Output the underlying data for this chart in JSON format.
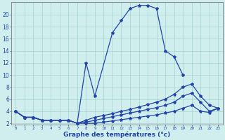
{
  "xlabel": "Graphe des températures (°c)",
  "bg_color": "#d1eeee",
  "grid_color": "#a8d4d4",
  "line_color": "#2244aa",
  "curve1_x": [
    0,
    1,
    2,
    3,
    4,
    5,
    6,
    7,
    8,
    9,
    11,
    12,
    13,
    14,
    15,
    16,
    17,
    18,
    19
  ],
  "curve1_y": [
    4,
    3,
    3,
    2.5,
    2.5,
    2.5,
    2.5,
    2,
    12,
    6.5,
    17,
    19,
    21,
    21.5,
    21.5,
    21,
    14,
    13,
    10
  ],
  "curve2_x": [
    0,
    1,
    2,
    3,
    4,
    5,
    6,
    7,
    8,
    9,
    10,
    11,
    12,
    13,
    14,
    15,
    16,
    17,
    18,
    19,
    20,
    21,
    22,
    23
  ],
  "curve2_y": [
    4,
    3,
    3,
    2.5,
    2.5,
    2.5,
    2.5,
    2,
    2.5,
    3,
    3.3,
    3.6,
    4,
    4.3,
    4.7,
    5.1,
    5.5,
    6,
    6.8,
    8,
    8.5,
    6.5,
    5,
    4.5
  ],
  "curve3_x": [
    0,
    1,
    2,
    3,
    4,
    5,
    6,
    7,
    8,
    9,
    10,
    11,
    12,
    13,
    14,
    15,
    16,
    17,
    18,
    19,
    20,
    21,
    22,
    23
  ],
  "curve3_y": [
    4,
    3,
    3,
    2.5,
    2.5,
    2.5,
    2.5,
    2,
    2.2,
    2.5,
    2.8,
    3.1,
    3.4,
    3.7,
    4.0,
    4.3,
    4.6,
    5,
    5.5,
    6.5,
    7,
    5.5,
    4,
    4.5
  ],
  "curve4_x": [
    0,
    1,
    2,
    3,
    4,
    5,
    6,
    7,
    8,
    9,
    10,
    11,
    12,
    13,
    14,
    15,
    16,
    17,
    18,
    19,
    20,
    21,
    22,
    23
  ],
  "curve4_y": [
    4,
    3,
    3,
    2.5,
    2.5,
    2.5,
    2.5,
    2,
    2,
    2,
    2.2,
    2.4,
    2.6,
    2.8,
    3,
    3.2,
    3.4,
    3.7,
    4,
    4.5,
    5,
    4,
    3.8,
    4.5
  ],
  "ylim": [
    1.8,
    22
  ],
  "xlim": [
    -0.5,
    23.5
  ],
  "yticks": [
    2,
    4,
    6,
    8,
    10,
    12,
    14,
    16,
    18,
    20
  ],
  "xticks": [
    0,
    1,
    2,
    3,
    4,
    5,
    6,
    7,
    8,
    9,
    10,
    11,
    12,
    13,
    14,
    15,
    16,
    17,
    18,
    19,
    20,
    21,
    22,
    23
  ]
}
